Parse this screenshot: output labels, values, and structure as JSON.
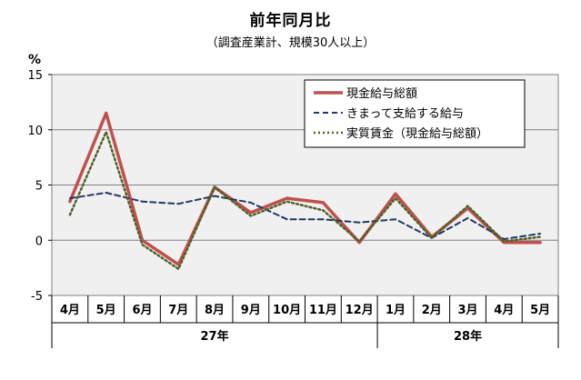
{
  "chart_data": {
    "type": "line",
    "title": "前年同月比",
    "subtitle": "（調査産業計、規模30人以上）",
    "ylabel": "%",
    "ylim": [
      -5,
      15
    ],
    "yticks": [
      -5,
      0,
      5,
      10,
      15
    ],
    "categories": [
      "4月",
      "5月",
      "6月",
      "7月",
      "8月",
      "9月",
      "10月",
      "11月",
      "12月",
      "1月",
      "2月",
      "3月",
      "4月",
      "5月"
    ],
    "year_groups": [
      {
        "label": "27年",
        "count": 9
      },
      {
        "label": "28年",
        "count": 5
      }
    ],
    "grid": true,
    "legend_position": "top-right",
    "series": [
      {
        "name": "現金給与総額",
        "color": "#c0504d",
        "style": "solid",
        "values": [
          3.5,
          11.5,
          0.0,
          -2.2,
          4.8,
          2.5,
          3.8,
          3.4,
          -0.2,
          4.2,
          0.3,
          2.9,
          -0.2,
          -0.2
        ]
      },
      {
        "name": "きまって支給する給与",
        "color": "#1f3864",
        "style": "dashed",
        "values": [
          3.8,
          4.3,
          3.5,
          3.3,
          4.0,
          3.4,
          1.9,
          1.9,
          1.6,
          1.9,
          0.2,
          2.0,
          0.1,
          0.6
        ]
      },
      {
        "name": "実質賃金（現金給与総額）",
        "color": "#4f6228",
        "style": "dotted",
        "values": [
          2.3,
          9.8,
          -0.4,
          -2.6,
          4.8,
          2.2,
          3.5,
          2.7,
          -0.1,
          3.8,
          0.2,
          3.1,
          -0.1,
          0.3
        ]
      }
    ]
  }
}
